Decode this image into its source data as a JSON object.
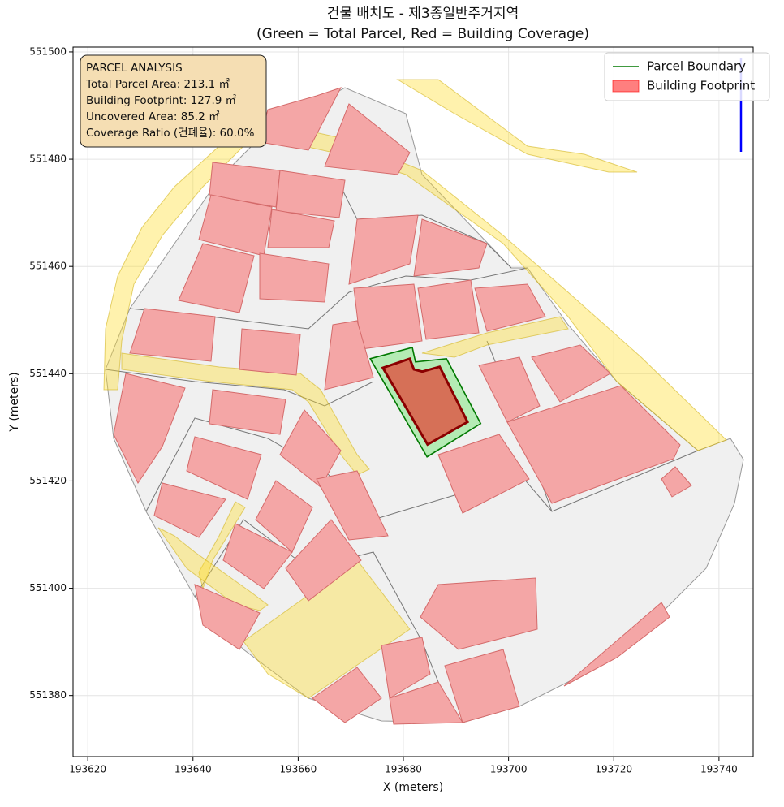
{
  "chart_data": {
    "type": "map",
    "title": [
      "건물 배치도 - 제3종일반주거지역",
      "(Green = Total Parcel, Red = Building Coverage)"
    ],
    "xlabel": "X (meters)",
    "ylabel": "Y (meters)",
    "xlim": [
      193617.2,
      193746.5
    ],
    "ylim": [
      551368.6,
      551500.9
    ],
    "xticks": [
      193620,
      193640,
      193660,
      193680,
      193700,
      193720,
      193740
    ],
    "yticks": [
      551380,
      551400,
      551420,
      551440,
      551460,
      551480,
      551500
    ],
    "grid": true,
    "legend": "upper right",
    "series": [
      {
        "name": "Parcel Boundary",
        "color": "#007800",
        "x": [
          193673.7,
          193681.7,
          193682.3,
          193688.2,
          193694.7,
          193684.5
        ],
        "y": [
          551442.8,
          551444.9,
          551442.2,
          551442.8,
          551430.7,
          551424.5
        ]
      },
      {
        "name": "Building Footprint",
        "color": "#ff0000",
        "x": [
          193676.1,
          193681.2,
          193682.0,
          193683.6,
          193686.9,
          193692.2,
          193684.6
        ],
        "y": [
          551441.1,
          551442.8,
          551440.8,
          551440.4,
          551441.3,
          551431.0,
          551426.8
        ]
      }
    ],
    "annotation": [
      "PARCEL ANALYSIS",
      "Total Parcel Area: 213.1 ㎡",
      "Building Footprint: 127.9 ㎡",
      "Uncovered Area: 85.2 ㎡",
      "Coverage Ratio (건폐율): 60.0%"
    ]
  }
}
